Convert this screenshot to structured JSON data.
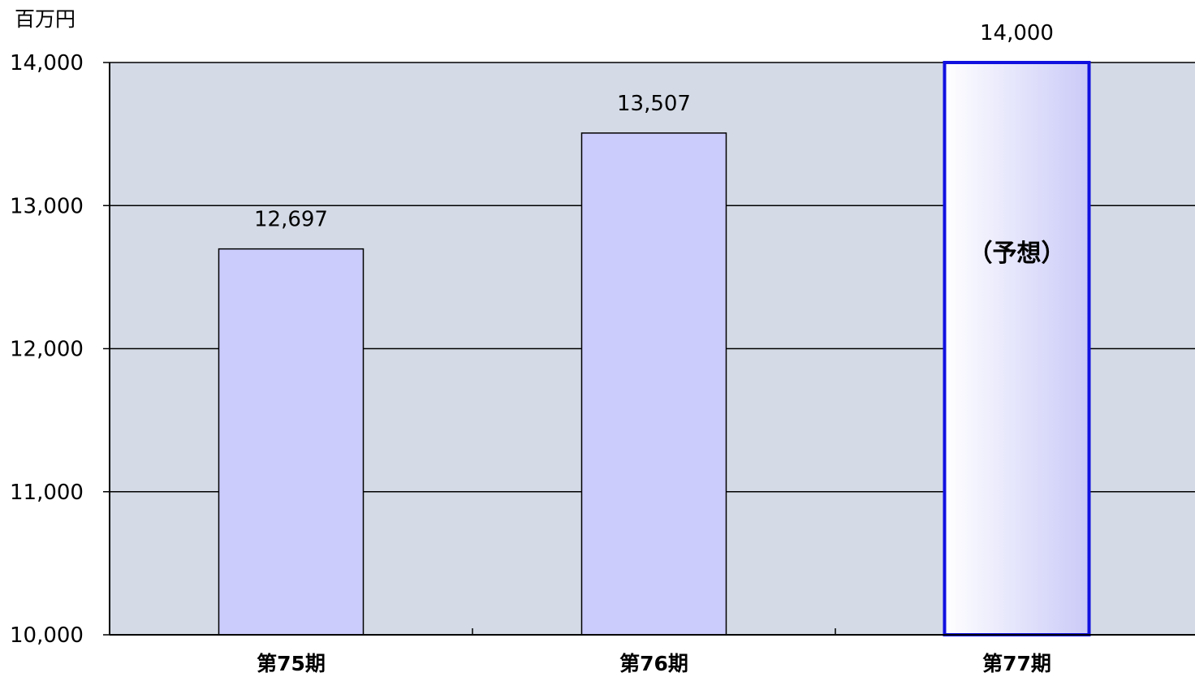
{
  "chart_data": {
    "type": "bar",
    "unit_label": "百万円",
    "categories": [
      "第75期",
      "第76期",
      "第77期"
    ],
    "values": [
      12697,
      13507,
      14000
    ],
    "data_labels": [
      "12,697",
      "13,507",
      "14,000"
    ],
    "y_ticks": [
      10000,
      11000,
      12000,
      13000,
      14000
    ],
    "y_tick_labels": [
      "10,000",
      "11,000",
      "12,000",
      "13,000",
      "14,000"
    ],
    "ylim": [
      10000,
      14000
    ],
    "grid": true,
    "forecast_note": "（予想）",
    "forecast_index": 2,
    "colors": {
      "plot_bg": "#d4dbe6",
      "bar_fill": "#ccccfc",
      "forecast_border": "#1010e0",
      "forecast_gradient_start": "#ffffff",
      "forecast_gradient_end": "#cacaf8"
    }
  }
}
